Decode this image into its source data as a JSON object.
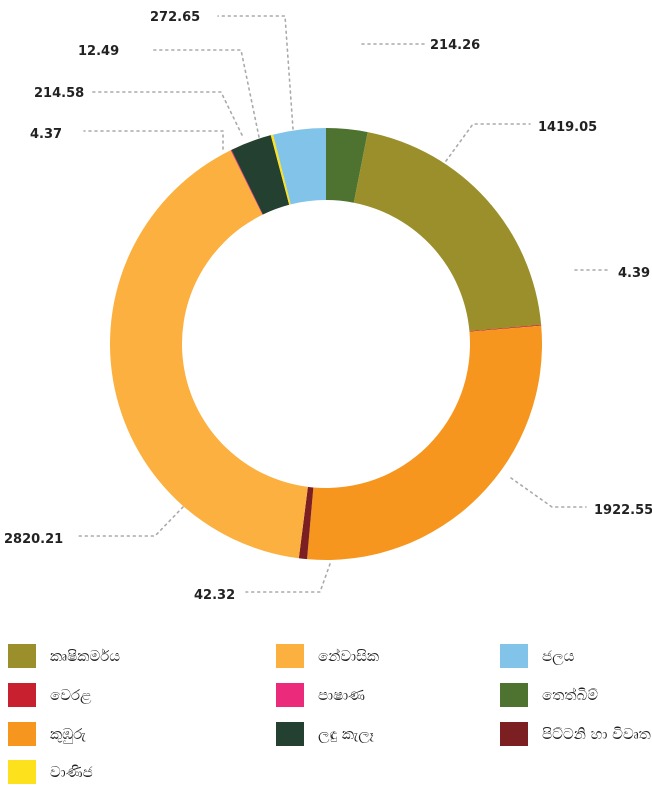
{
  "chart_data": {
    "type": "pie",
    "donut": true,
    "start_angle_deg": 0,
    "direction": "clockwise",
    "slices": [
      {
        "label": "තෙත්බිම්",
        "value": 214.26,
        "value_label": "214.26",
        "color": "#4e7330"
      },
      {
        "label": "කෘෂිකර්මය",
        "value": 1419.05,
        "value_label": "1419.05",
        "color": "#9a8f2b"
      },
      {
        "label": "වෙරළ",
        "value": 4.39,
        "value_label": "4.39",
        "color": "#c8202e"
      },
      {
        "label": "කුඹුරු",
        "value": 1922.55,
        "value_label": "1922.55",
        "color": "#f7961e"
      },
      {
        "label": "පිට්ටනි හා විවෘත භූමි",
        "value": 42.32,
        "value_label": "42.32",
        "color": "#7c1f22"
      },
      {
        "label": "නේවාසික",
        "value": 2820.21,
        "value_label": "2820.21",
        "color": "#fbb040"
      },
      {
        "label": "පාෂාණ",
        "value": 4.37,
        "value_label": "4.37",
        "color": "#ec2a7b"
      },
      {
        "label": "ලඳු කැලෑ",
        "value": 214.58,
        "value_label": "214.58",
        "color": "#234031"
      },
      {
        "label": "වාණිජ",
        "value": 12.49,
        "value_label": "12.49",
        "color": "#fde11c"
      },
      {
        "label": "ජලය",
        "value": 272.65,
        "value_label": "272.65",
        "color": "#82c3ea"
      }
    ]
  },
  "legend": [
    {
      "label": "කෘෂිකර්මය",
      "color": "#9a8f2b"
    },
    {
      "label": "නේවාසික",
      "color": "#fbb040"
    },
    {
      "label": "ජලය",
      "color": "#82c3ea"
    },
    {
      "label": "වෙරළ",
      "color": "#c8202e"
    },
    {
      "label": "පාෂාණ",
      "color": "#ec2a7b"
    },
    {
      "label": "තෙත්බිම්",
      "color": "#4e7330"
    },
    {
      "label": "කුඹුරු",
      "color": "#f7961e"
    },
    {
      "label": "ලඳු කැලෑ",
      "color": "#234031"
    },
    {
      "label": "පිට්ටනි හා විවෘත භූමි",
      "color": "#7c1f22"
    },
    {
      "label": "වාණිජ",
      "color": "#fde11c"
    }
  ]
}
